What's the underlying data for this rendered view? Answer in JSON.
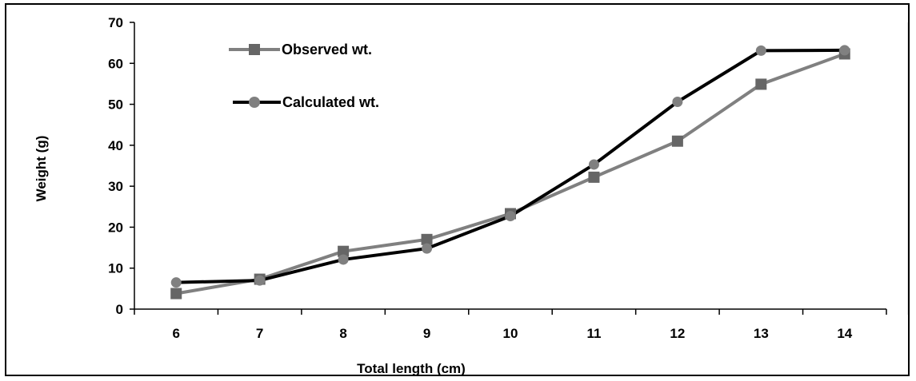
{
  "chart_data": {
    "type": "line",
    "title": "",
    "xlabel": "Total length (cm)",
    "ylabel": "Weight (g)",
    "x": [
      6,
      7,
      8,
      9,
      10,
      11,
      12,
      13,
      14
    ],
    "x_tick_labels": [
      "6",
      "7",
      "8",
      "9",
      "10",
      "11",
      "12",
      "13",
      "14"
    ],
    "y_tick_labels": [
      "0",
      "10",
      "20",
      "30",
      "40",
      "50",
      "60",
      "70"
    ],
    "ylim": [
      0,
      70
    ],
    "y_ticks": [
      0,
      10,
      20,
      30,
      40,
      50,
      60,
      70
    ],
    "grid": false,
    "legend_placement": "top-left",
    "series": [
      {
        "name": "Observed wt.",
        "values": [
          3.8,
          7.3,
          14.1,
          17.0,
          23.3,
          32.2,
          41.0,
          54.9,
          62.3
        ],
        "color": "#808080",
        "marker": "square"
      },
      {
        "name": "Calculated wt.",
        "values": [
          6.5,
          7.0,
          12.1,
          14.8,
          22.7,
          35.3,
          50.6,
          63.1,
          63.2
        ],
        "color": "#000000",
        "marker": "circle",
        "marker_color": "#808080"
      }
    ]
  }
}
